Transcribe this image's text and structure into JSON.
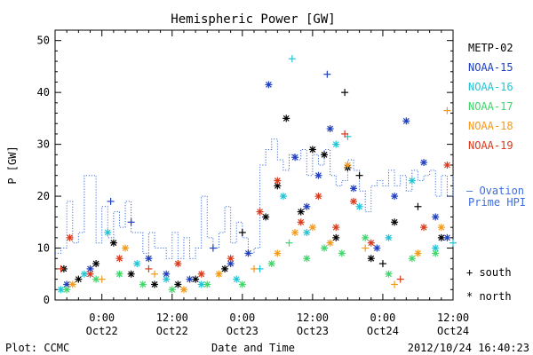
{
  "chart_data": {
    "type": "scatter",
    "title": "Hemispheric Power [GW]",
    "xlabel": "Date and Time",
    "ylabel": "P [GW]",
    "ylim": [
      0,
      52
    ],
    "xlim_hours": [
      -8,
      60
    ],
    "yticks": [
      0,
      10,
      20,
      30,
      40,
      50
    ],
    "xticks": [
      {
        "hour": 0,
        "time": "0:00",
        "date": "Oct22"
      },
      {
        "hour": 12,
        "time": "12:00",
        "date": "Oct22"
      },
      {
        "hour": 24,
        "time": "0:00",
        "date": "Oct23"
      },
      {
        "hour": 36,
        "time": "12:00",
        "date": "Oct23"
      },
      {
        "hour": 48,
        "time": "0:00",
        "date": "Oct24"
      },
      {
        "hour": 60,
        "time": "12:00",
        "date": "Oct24"
      }
    ],
    "legend_placement": "right",
    "series": [
      {
        "name": "METP-02",
        "color": "#000000",
        "points": [
          {
            "x": -6.5,
            "y": 6,
            "m": "*"
          },
          {
            "x": -4,
            "y": 4,
            "m": "*"
          },
          {
            "x": -1,
            "y": 7,
            "m": "*"
          },
          {
            "x": 2,
            "y": 11,
            "m": "*"
          },
          {
            "x": 5,
            "y": 5,
            "m": "*"
          },
          {
            "x": 9,
            "y": 3,
            "m": "*"
          },
          {
            "x": 13,
            "y": 3,
            "m": "*"
          },
          {
            "x": 16,
            "y": 4,
            "m": "*"
          },
          {
            "x": 21,
            "y": 6,
            "m": "*"
          },
          {
            "x": 24,
            "y": 13,
            "m": "+"
          },
          {
            "x": 28,
            "y": 16,
            "m": "*"
          },
          {
            "x": 30,
            "y": 22,
            "m": "*"
          },
          {
            "x": 31.5,
            "y": 35,
            "m": "*"
          },
          {
            "x": 34,
            "y": 17,
            "m": "*"
          },
          {
            "x": 36,
            "y": 29,
            "m": "*"
          },
          {
            "x": 38,
            "y": 28,
            "m": "*"
          },
          {
            "x": 40,
            "y": 12,
            "m": "*"
          },
          {
            "x": 41.5,
            "y": 40,
            "m": "+"
          },
          {
            "x": 42,
            "y": 25.5,
            "m": "*"
          },
          {
            "x": 44,
            "y": 24,
            "m": "+"
          },
          {
            "x": 46,
            "y": 8,
            "m": "*"
          },
          {
            "x": 48,
            "y": 7,
            "m": "+"
          },
          {
            "x": 50,
            "y": 15,
            "m": "*"
          },
          {
            "x": 54,
            "y": 18,
            "m": "+"
          },
          {
            "x": 58,
            "y": 12,
            "m": "*"
          }
        ]
      },
      {
        "name": "NOAA-15",
        "color": "#1f3fbf",
        "points": [
          {
            "x": -6,
            "y": 3,
            "m": "*"
          },
          {
            "x": -2,
            "y": 6,
            "m": "*"
          },
          {
            "x": 1.5,
            "y": 19,
            "m": "+"
          },
          {
            "x": 5,
            "y": 15,
            "m": "+"
          },
          {
            "x": 8,
            "y": 8,
            "m": "*"
          },
          {
            "x": 11,
            "y": 5,
            "m": "*"
          },
          {
            "x": 15,
            "y": 4,
            "m": "*"
          },
          {
            "x": 19,
            "y": 10,
            "m": "+"
          },
          {
            "x": 22,
            "y": 7,
            "m": "*"
          },
          {
            "x": 25,
            "y": 9,
            "m": "*"
          },
          {
            "x": 28.5,
            "y": 41.5,
            "m": "*"
          },
          {
            "x": 33,
            "y": 27.5,
            "m": "*"
          },
          {
            "x": 35,
            "y": 18,
            "m": "*"
          },
          {
            "x": 37,
            "y": 24,
            "m": "*"
          },
          {
            "x": 38.5,
            "y": 43.5,
            "m": "+"
          },
          {
            "x": 39,
            "y": 33,
            "m": "*"
          },
          {
            "x": 43,
            "y": 21.5,
            "m": "*"
          },
          {
            "x": 47,
            "y": 10,
            "m": "*"
          },
          {
            "x": 50,
            "y": 20,
            "m": "*"
          },
          {
            "x": 52,
            "y": 34.5,
            "m": "*"
          },
          {
            "x": 55,
            "y": 26.5,
            "m": "*"
          },
          {
            "x": 57,
            "y": 16,
            "m": "*"
          },
          {
            "x": 59,
            "y": 12,
            "m": "*"
          }
        ]
      },
      {
        "name": "NOAA-16",
        "color": "#22c4d4",
        "points": [
          {
            "x": -7,
            "y": 2,
            "m": "*"
          },
          {
            "x": -3,
            "y": 5,
            "m": "*"
          },
          {
            "x": 1,
            "y": 13,
            "m": "*"
          },
          {
            "x": 6,
            "y": 7,
            "m": "*"
          },
          {
            "x": 11,
            "y": 4,
            "m": "*"
          },
          {
            "x": 17,
            "y": 3,
            "m": "*"
          },
          {
            "x": 23,
            "y": 4,
            "m": "*"
          },
          {
            "x": 27,
            "y": 6,
            "m": "+"
          },
          {
            "x": 31,
            "y": 20,
            "m": "*"
          },
          {
            "x": 32.5,
            "y": 46.5,
            "m": "+"
          },
          {
            "x": 35,
            "y": 13,
            "m": "*"
          },
          {
            "x": 40,
            "y": 30,
            "m": "*"
          },
          {
            "x": 42,
            "y": 31.5,
            "m": "+"
          },
          {
            "x": 44,
            "y": 18,
            "m": "*"
          },
          {
            "x": 49,
            "y": 12,
            "m": "*"
          },
          {
            "x": 53,
            "y": 23,
            "m": "*"
          },
          {
            "x": 57,
            "y": 10,
            "m": "*"
          },
          {
            "x": 60,
            "y": 11,
            "m": "+"
          }
        ]
      },
      {
        "name": "NOAA-17",
        "color": "#3fd66a",
        "points": [
          {
            "x": -6,
            "y": 2,
            "m": "*"
          },
          {
            "x": -1,
            "y": 4,
            "m": "*"
          },
          {
            "x": 3,
            "y": 5,
            "m": "*"
          },
          {
            "x": 7,
            "y": 3,
            "m": "*"
          },
          {
            "x": 12,
            "y": 2,
            "m": "*"
          },
          {
            "x": 18,
            "y": 3,
            "m": "*"
          },
          {
            "x": 24,
            "y": 3,
            "m": "*"
          },
          {
            "x": 29,
            "y": 7,
            "m": "*"
          },
          {
            "x": 32,
            "y": 11,
            "m": "+"
          },
          {
            "x": 35,
            "y": 8,
            "m": "*"
          },
          {
            "x": 38,
            "y": 10,
            "m": "*"
          },
          {
            "x": 41,
            "y": 9,
            "m": "*"
          },
          {
            "x": 45,
            "y": 12,
            "m": "*"
          },
          {
            "x": 49,
            "y": 5,
            "m": "*"
          },
          {
            "x": 53,
            "y": 8,
            "m": "*"
          },
          {
            "x": 57,
            "y": 9,
            "m": "*"
          }
        ]
      },
      {
        "name": "NOAA-18",
        "color": "#f39a1c",
        "points": [
          {
            "x": -5,
            "y": 3,
            "m": "*"
          },
          {
            "x": 0,
            "y": 4,
            "m": "+"
          },
          {
            "x": 4,
            "y": 10,
            "m": "*"
          },
          {
            "x": 9,
            "y": 5,
            "m": "+"
          },
          {
            "x": 14,
            "y": 2,
            "m": "*"
          },
          {
            "x": 20,
            "y": 5,
            "m": "*"
          },
          {
            "x": 26,
            "y": 6,
            "m": "+"
          },
          {
            "x": 30,
            "y": 9,
            "m": "*"
          },
          {
            "x": 33,
            "y": 13,
            "m": "*"
          },
          {
            "x": 36,
            "y": 14,
            "m": "*"
          },
          {
            "x": 39,
            "y": 11,
            "m": "*"
          },
          {
            "x": 42,
            "y": 26,
            "m": "*"
          },
          {
            "x": 45,
            "y": 10,
            "m": "+"
          },
          {
            "x": 50,
            "y": 3,
            "m": "+"
          },
          {
            "x": 54,
            "y": 9,
            "m": "*"
          },
          {
            "x": 58,
            "y": 14,
            "m": "*"
          },
          {
            "x": 59,
            "y": 36.5,
            "m": "+"
          }
        ]
      },
      {
        "name": "NOAA-19",
        "color": "#d93a1c",
        "points": [
          {
            "x": -7,
            "y": 6,
            "m": "+"
          },
          {
            "x": -5.5,
            "y": 12,
            "m": "*"
          },
          {
            "x": -2,
            "y": 5,
            "m": "*"
          },
          {
            "x": 3,
            "y": 8,
            "m": "*"
          },
          {
            "x": 8,
            "y": 6,
            "m": "+"
          },
          {
            "x": 13,
            "y": 7,
            "m": "*"
          },
          {
            "x": 17,
            "y": 5,
            "m": "*"
          },
          {
            "x": 22,
            "y": 8,
            "m": "*"
          },
          {
            "x": 27,
            "y": 17,
            "m": "*"
          },
          {
            "x": 30,
            "y": 23,
            "m": "*"
          },
          {
            "x": 34,
            "y": 15,
            "m": "*"
          },
          {
            "x": 37,
            "y": 20,
            "m": "*"
          },
          {
            "x": 40,
            "y": 14,
            "m": "*"
          },
          {
            "x": 41.5,
            "y": 32,
            "m": "+"
          },
          {
            "x": 43,
            "y": 19,
            "m": "*"
          },
          {
            "x": 46,
            "y": 11,
            "m": "*"
          },
          {
            "x": 51,
            "y": 4,
            "m": "+"
          },
          {
            "x": 55,
            "y": 14,
            "m": "*"
          },
          {
            "x": 59,
            "y": 26,
            "m": "*"
          },
          {
            "x": 61,
            "y": 23,
            "m": "+"
          }
        ]
      },
      {
        "name": "Ovation Prime HPI",
        "color": "#3c6ee0",
        "style": "dotted-step",
        "points": [
          {
            "x": -8,
            "y": 9
          },
          {
            "x": -7,
            "y": 10
          },
          {
            "x": -6,
            "y": 19
          },
          {
            "x": -5,
            "y": 11
          },
          {
            "x": -4,
            "y": 13
          },
          {
            "x": -3,
            "y": 24
          },
          {
            "x": -1,
            "y": 11
          },
          {
            "x": 0,
            "y": 18
          },
          {
            "x": 1,
            "y": 12
          },
          {
            "x": 2,
            "y": 17
          },
          {
            "x": 3,
            "y": 14
          },
          {
            "x": 4,
            "y": 19
          },
          {
            "x": 5,
            "y": 13
          },
          {
            "x": 6,
            "y": 13
          },
          {
            "x": 7,
            "y": 9
          },
          {
            "x": 8,
            "y": 13
          },
          {
            "x": 9,
            "y": 10
          },
          {
            "x": 10,
            "y": 10
          },
          {
            "x": 11,
            "y": 8
          },
          {
            "x": 12,
            "y": 13
          },
          {
            "x": 13,
            "y": 8
          },
          {
            "x": 14,
            "y": 12
          },
          {
            "x": 15,
            "y": 8
          },
          {
            "x": 16,
            "y": 10
          },
          {
            "x": 17,
            "y": 20
          },
          {
            "x": 18,
            "y": 12
          },
          {
            "x": 19,
            "y": 10
          },
          {
            "x": 20,
            "y": 13
          },
          {
            "x": 21,
            "y": 18
          },
          {
            "x": 22,
            "y": 11
          },
          {
            "x": 23,
            "y": 15
          },
          {
            "x": 24,
            "y": 12
          },
          {
            "x": 25,
            "y": 9
          },
          {
            "x": 26,
            "y": 10
          },
          {
            "x": 27,
            "y": 26
          },
          {
            "x": 28,
            "y": 29
          },
          {
            "x": 29,
            "y": 31
          },
          {
            "x": 30,
            "y": 27
          },
          {
            "x": 31,
            "y": 25
          },
          {
            "x": 32,
            "y": 28
          },
          {
            "x": 33,
            "y": 27
          },
          {
            "x": 34,
            "y": 29
          },
          {
            "x": 35,
            "y": 24
          },
          {
            "x": 36,
            "y": 28
          },
          {
            "x": 37,
            "y": 26
          },
          {
            "x": 38,
            "y": 29
          },
          {
            "x": 39,
            "y": 24
          },
          {
            "x": 40,
            "y": 22
          },
          {
            "x": 41,
            "y": 23
          },
          {
            "x": 42,
            "y": 27
          },
          {
            "x": 43,
            "y": 25
          },
          {
            "x": 44,
            "y": 21
          },
          {
            "x": 45,
            "y": 17
          },
          {
            "x": 46,
            "y": 22
          },
          {
            "x": 47,
            "y": 23
          },
          {
            "x": 48,
            "y": 22
          },
          {
            "x": 49,
            "y": 25
          },
          {
            "x": 50,
            "y": 22
          },
          {
            "x": 51,
            "y": 24
          },
          {
            "x": 52,
            "y": 21
          },
          {
            "x": 53,
            "y": 25
          },
          {
            "x": 54,
            "y": 23
          },
          {
            "x": 55,
            "y": 24
          },
          {
            "x": 56,
            "y": 25
          },
          {
            "x": 57,
            "y": 20
          },
          {
            "x": 58,
            "y": 24
          },
          {
            "x": 59,
            "y": 20
          },
          {
            "x": 60,
            "y": 24
          }
        ]
      }
    ],
    "legend": [
      "METP-02",
      "NOAA-15",
      "NOAA-16",
      "NOAA-17",
      "NOAA-18",
      "NOAA-19"
    ],
    "line_legend": {
      "line1": "— Ovation",
      "line2": "Prime HPI"
    },
    "marker_legend": [
      {
        "symbol": "+",
        "label": "south"
      },
      {
        "symbol": "*",
        "label": "north"
      }
    ]
  },
  "footer": {
    "plot_credit": "Plot: CCMC",
    "timestamp": "2012/10/24 16:40:23"
  }
}
